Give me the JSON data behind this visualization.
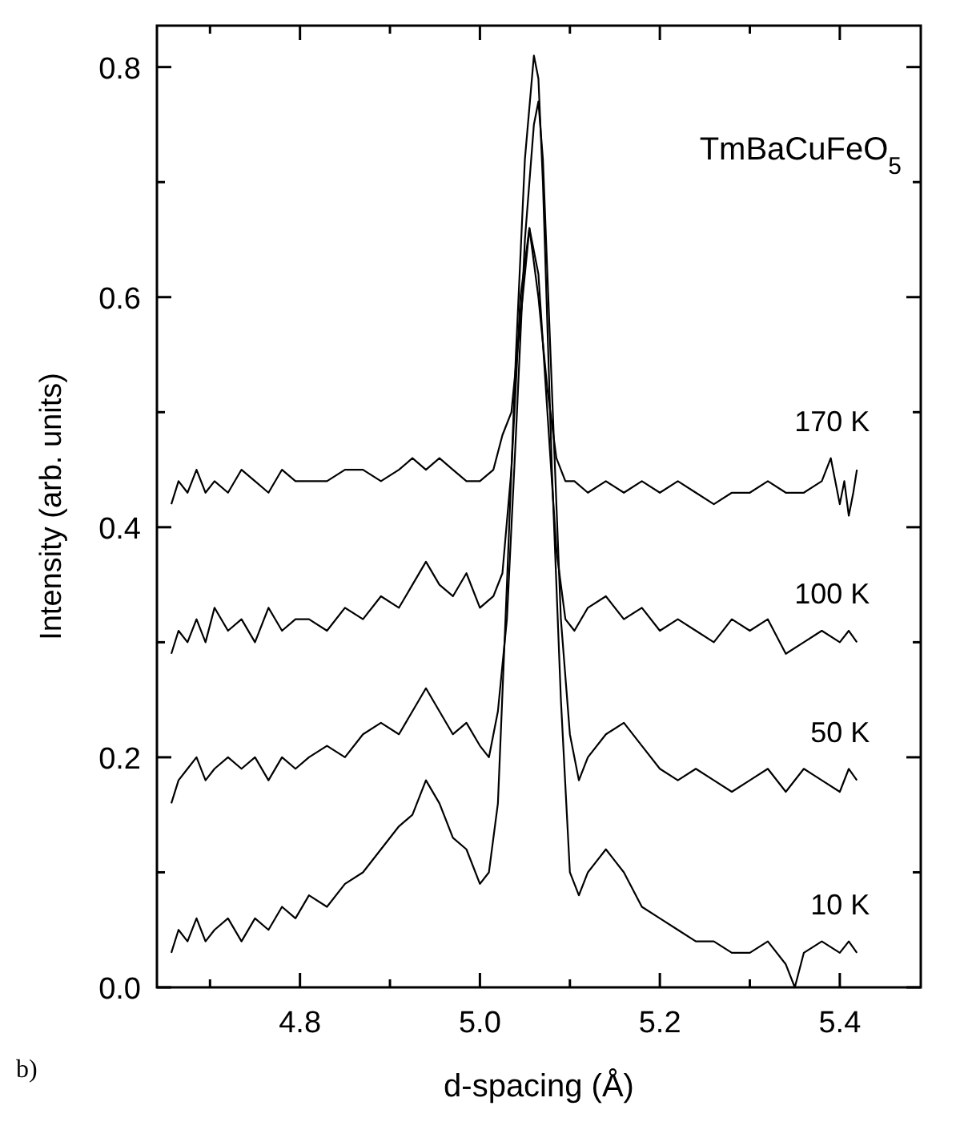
{
  "chart_data": {
    "type": "line",
    "xlabel": "d-spacing (Å)",
    "ylabel": "Intensity (arb. units)",
    "annotations": [
      "TmBaCuFeO$_{5}$",
      "b)"
    ],
    "xlim": [
      4.641,
      5.49
    ],
    "xticks": [
      {
        "value": 4.7,
        "label": null
      },
      4.8,
      {
        "value": 4.9,
        "label": null
      },
      {
        "value": 5.0,
        "label": "5.0"
      },
      {
        "value": 5.1,
        "label": null
      },
      5.2,
      {
        "value": 5.3,
        "label": null
      },
      5.4
    ],
    "ylim": [
      0,
      0.836
    ],
    "yticks": [
      {
        "value": 0,
        "label": "0.0"
      },
      {
        "value": 0.1,
        "label": null
      },
      0.2,
      {
        "value": 0.3,
        "label": null
      },
      0.4,
      {
        "value": 0.5,
        "label": null
      },
      0.6,
      {
        "value": 0.7,
        "label": null
      },
      0.8
    ],
    "grid": false,
    "legend": "right",
    "marker": "none",
    "line_style": "solid",
    "series": [
      {
        "name": "170 K",
        "color": "#000000",
        "x": [
          4.657,
          4.665,
          4.675,
          4.685,
          4.695,
          4.705,
          4.72,
          4.735,
          4.75,
          4.765,
          4.78,
          4.795,
          4.81,
          4.83,
          4.85,
          4.87,
          4.89,
          4.91,
          4.925,
          4.94,
          4.955,
          4.97,
          4.985,
          5.0,
          5.015,
          5.025,
          5.035,
          5.045,
          5.055,
          5.065,
          5.075,
          5.085,
          5.095,
          5.105,
          5.12,
          5.14,
          5.16,
          5.18,
          5.2,
          5.22,
          5.24,
          5.26,
          5.28,
          5.3,
          5.32,
          5.34,
          5.36,
          5.38,
          5.39,
          5.4,
          5.405,
          5.41,
          5.415,
          5.419
        ],
        "values": [
          0.42,
          0.44,
          0.43,
          0.45,
          0.43,
          0.44,
          0.43,
          0.45,
          0.44,
          0.43,
          0.45,
          0.44,
          0.44,
          0.44,
          0.45,
          0.45,
          0.44,
          0.45,
          0.46,
          0.45,
          0.46,
          0.45,
          0.44,
          0.44,
          0.45,
          0.48,
          0.5,
          0.58,
          0.66,
          0.6,
          0.52,
          0.46,
          0.44,
          0.44,
          0.43,
          0.44,
          0.43,
          0.44,
          0.43,
          0.44,
          0.43,
          0.42,
          0.43,
          0.43,
          0.44,
          0.43,
          0.43,
          0.44,
          0.46,
          0.42,
          0.44,
          0.41,
          0.43,
          0.45
        ]
      },
      {
        "name": "100 K",
        "color": "#000000",
        "x": [
          4.657,
          4.665,
          4.675,
          4.685,
          4.695,
          4.705,
          4.72,
          4.735,
          4.75,
          4.765,
          4.78,
          4.795,
          4.81,
          4.83,
          4.85,
          4.87,
          4.89,
          4.91,
          4.925,
          4.94,
          4.955,
          4.97,
          4.985,
          5.0,
          5.015,
          5.025,
          5.035,
          5.045,
          5.055,
          5.065,
          5.075,
          5.085,
          5.095,
          5.105,
          5.12,
          5.14,
          5.16,
          5.18,
          5.2,
          5.22,
          5.24,
          5.26,
          5.28,
          5.3,
          5.32,
          5.34,
          5.36,
          5.38,
          5.4,
          5.41,
          5.419
        ],
        "values": [
          0.29,
          0.31,
          0.3,
          0.32,
          0.3,
          0.33,
          0.31,
          0.32,
          0.3,
          0.33,
          0.31,
          0.32,
          0.32,
          0.31,
          0.33,
          0.32,
          0.34,
          0.33,
          0.35,
          0.37,
          0.35,
          0.34,
          0.36,
          0.33,
          0.34,
          0.36,
          0.45,
          0.6,
          0.66,
          0.62,
          0.5,
          0.38,
          0.32,
          0.31,
          0.33,
          0.34,
          0.32,
          0.33,
          0.31,
          0.32,
          0.31,
          0.3,
          0.32,
          0.31,
          0.32,
          0.29,
          0.3,
          0.31,
          0.3,
          0.31,
          0.3
        ]
      },
      {
        "name": "50 K",
        "color": "#000000",
        "x": [
          4.657,
          4.665,
          4.675,
          4.685,
          4.695,
          4.705,
          4.72,
          4.735,
          4.75,
          4.765,
          4.78,
          4.795,
          4.81,
          4.83,
          4.85,
          4.87,
          4.89,
          4.91,
          4.925,
          4.94,
          4.955,
          4.97,
          4.985,
          5.0,
          5.01,
          5.02,
          5.03,
          5.04,
          5.05,
          5.06,
          5.065,
          5.07,
          5.08,
          5.09,
          5.1,
          5.11,
          5.12,
          5.14,
          5.16,
          5.18,
          5.2,
          5.22,
          5.24,
          5.26,
          5.28,
          5.3,
          5.32,
          5.34,
          5.36,
          5.38,
          5.4,
          5.41,
          5.419
        ],
        "values": [
          0.16,
          0.18,
          0.19,
          0.2,
          0.18,
          0.19,
          0.2,
          0.19,
          0.2,
          0.18,
          0.2,
          0.19,
          0.2,
          0.21,
          0.2,
          0.22,
          0.23,
          0.22,
          0.24,
          0.26,
          0.24,
          0.22,
          0.23,
          0.21,
          0.2,
          0.24,
          0.32,
          0.48,
          0.65,
          0.75,
          0.77,
          0.72,
          0.52,
          0.32,
          0.22,
          0.18,
          0.2,
          0.22,
          0.23,
          0.21,
          0.19,
          0.18,
          0.19,
          0.18,
          0.17,
          0.18,
          0.19,
          0.17,
          0.19,
          0.18,
          0.17,
          0.19,
          0.18
        ]
      },
      {
        "name": "10 K",
        "color": "#000000",
        "x": [
          4.657,
          4.665,
          4.675,
          4.685,
          4.695,
          4.705,
          4.72,
          4.735,
          4.75,
          4.765,
          4.78,
          4.795,
          4.81,
          4.83,
          4.85,
          4.87,
          4.89,
          4.91,
          4.925,
          4.94,
          4.955,
          4.97,
          4.985,
          5.0,
          5.01,
          5.02,
          5.03,
          5.04,
          5.05,
          5.06,
          5.065,
          5.07,
          5.08,
          5.09,
          5.1,
          5.11,
          5.12,
          5.13,
          5.14,
          5.15,
          5.16,
          5.18,
          5.2,
          5.22,
          5.24,
          5.26,
          5.28,
          5.3,
          5.32,
          5.34,
          5.35,
          5.36,
          5.38,
          5.4,
          5.41,
          5.419
        ],
        "values": [
          0.03,
          0.05,
          0.04,
          0.06,
          0.04,
          0.05,
          0.06,
          0.04,
          0.06,
          0.05,
          0.07,
          0.06,
          0.08,
          0.07,
          0.09,
          0.1,
          0.12,
          0.14,
          0.15,
          0.18,
          0.16,
          0.13,
          0.12,
          0.09,
          0.1,
          0.16,
          0.35,
          0.55,
          0.72,
          0.81,
          0.79,
          0.7,
          0.45,
          0.25,
          0.1,
          0.08,
          0.1,
          0.11,
          0.12,
          0.11,
          0.1,
          0.07,
          0.06,
          0.05,
          0.04,
          0.04,
          0.03,
          0.03,
          0.04,
          0.02,
          0.0,
          0.03,
          0.04,
          0.03,
          0.04,
          0.03
        ]
      }
    ]
  }
}
